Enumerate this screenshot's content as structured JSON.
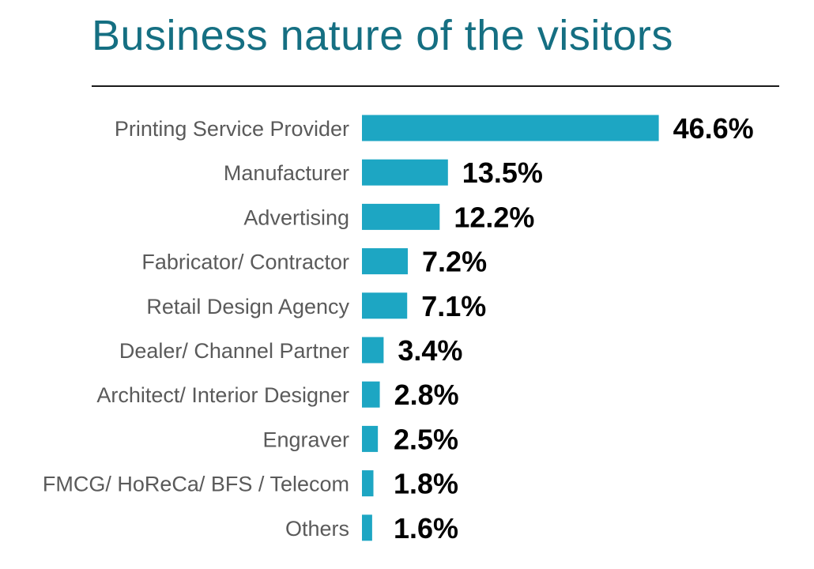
{
  "colors": {
    "bar": "#1da6c3",
    "title": "#156f82",
    "label": "#5a5a5a",
    "value": "#000000"
  },
  "chart_data": {
    "type": "bar",
    "orientation": "horizontal",
    "title": "Business nature of the visitors",
    "categories": [
      "Printing Service Provider",
      "Manufacturer",
      "Advertising",
      "Fabricator/ Contractor",
      "Retail Design Agency",
      "Dealer/ Channel Partner",
      "Architect/ Interior Designer",
      "Engraver",
      "FMCG/ HoReCa/ BFS / Telecom",
      "Others"
    ],
    "values": [
      46.6,
      13.5,
      12.2,
      7.2,
      7.1,
      3.4,
      2.8,
      2.5,
      1.8,
      1.6
    ],
    "value_labels": [
      "46.6%",
      "13.5%",
      "12.2%",
      "7.2%",
      "7.1%",
      "3.4%",
      "2.8%",
      "2.5%",
      "1.8%",
      "1.6%"
    ],
    "unit": "%",
    "grid": false,
    "legend": "none"
  }
}
